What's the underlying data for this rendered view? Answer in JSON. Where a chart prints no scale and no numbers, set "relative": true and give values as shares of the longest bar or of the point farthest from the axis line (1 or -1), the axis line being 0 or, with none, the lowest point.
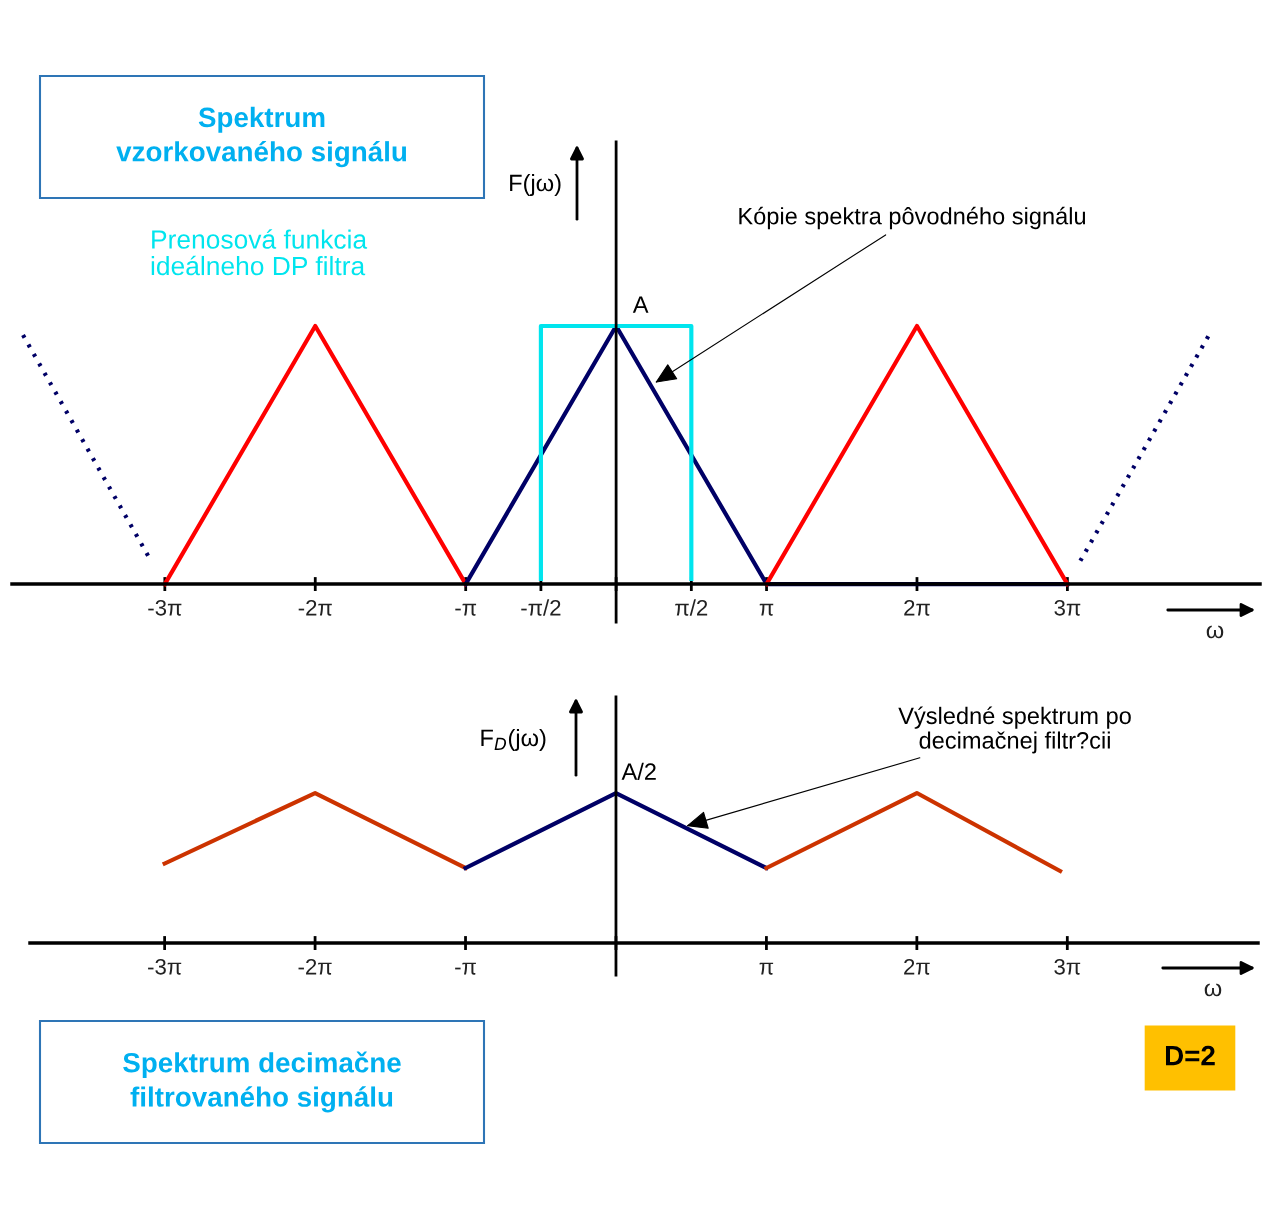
{
  "chart_data": [
    {
      "type": "line",
      "title": "Spektrum\nvzorkovaného signálu",
      "ylabel": "F(jω)",
      "xlabel": "ω",
      "relative": true,
      "tick_labels": "x",
      "marker": "none",
      "xlim": [
        -12.61,
        13.44
      ],
      "xticks": [
        {
          "value": -9.42,
          "label": "-3π"
        },
        {
          "value": -6.28,
          "label": "-2π"
        },
        {
          "value": -3.14,
          "label": "-π"
        },
        {
          "value": -1.57,
          "label": "-π/2"
        },
        {
          "value": 0,
          "label": null
        },
        {
          "value": 1.57,
          "label": "π/2"
        },
        {
          "value": 3.14,
          "label": "π"
        },
        {
          "value": 6.28,
          "label": "2π"
        },
        {
          "value": 9.42,
          "label": "3π"
        }
      ],
      "series": [
        {
          "color": "#000066",
          "line_style": "dotted",
          "x": [
            -12.38,
            -9.77
          ],
          "values": [
            0.965,
            0.11
          ]
        },
        {
          "color": "#ff0000",
          "line_style": "solid",
          "x": [
            -9.42,
            -6.28,
            -3.14
          ],
          "values": [
            0,
            1,
            0
          ]
        },
        {
          "color": "#000066",
          "line_style": "solid",
          "x": [
            -3.14,
            0,
            3.14,
            9.42
          ],
          "values": [
            0,
            1,
            0,
            0
          ]
        },
        {
          "color": "#ff0000",
          "line_style": "solid",
          "x": [
            3.14,
            6.28,
            9.42
          ],
          "values": [
            0,
            1,
            0
          ]
        },
        {
          "color": "#000066",
          "line_style": "dotted",
          "x": [
            9.69,
            12.36
          ],
          "values": [
            0.09,
            0.96
          ]
        },
        {
          "name": "Prenosová funkcia\nideálneho DP filtra",
          "color": "#00e5ee",
          "line_style": "solid",
          "x": [
            -1.57,
            -1.57,
            1.57,
            1.57
          ],
          "values": [
            0.02,
            1,
            1,
            0.02
          ]
        }
      ],
      "annotations": [
        {
          "text": "A",
          "x": 0,
          "y": 1
        },
        {
          "text": "Kópie spektra pôvodného signálu",
          "x": 0.815,
          "y": 0.78
        }
      ]
    },
    {
      "type": "line",
      "title": "Spektrum decimačne\nfiltrovaného signálu",
      "ylabel": "F$_{D}$(jω)",
      "xlabel": "ω",
      "relative": true,
      "tick_labels": "x",
      "marker": "none",
      "xlim": [
        -12.23,
        13.4
      ],
      "xticks": [
        {
          "value": -9.42,
          "label": "-3π"
        },
        {
          "value": -6.28,
          "label": "-2π"
        },
        {
          "value": -3.14,
          "label": "-π"
        },
        {
          "value": 0,
          "label": null
        },
        {
          "value": 3.14,
          "label": "π"
        },
        {
          "value": 6.28,
          "label": "2π"
        },
        {
          "value": 9.42,
          "label": "3π"
        }
      ],
      "series": [
        {
          "color": "#cc3300",
          "line_style": "solid",
          "x": [
            -9.42,
            -6.28,
            -3.14
          ],
          "values": [
            0.53,
            1,
            0.5
          ]
        },
        {
          "color": "#000066",
          "line_style": "solid",
          "x": [
            -3.14,
            0,
            3.14
          ],
          "values": [
            0.5,
            1,
            0.5
          ]
        },
        {
          "color": "#cc3300",
          "line_style": "solid",
          "x": [
            3.14,
            6.28,
            9.27
          ],
          "values": [
            0.5,
            1,
            0.48
          ]
        }
      ],
      "annotations": [
        {
          "text": "A/2",
          "x": 0,
          "y": 1
        },
        {
          "text": "Výsledné spektrum po\ndecimačnej filtr?cii",
          "x": 1.47,
          "y": 0.78
        },
        "D=2"
      ]
    }
  ]
}
